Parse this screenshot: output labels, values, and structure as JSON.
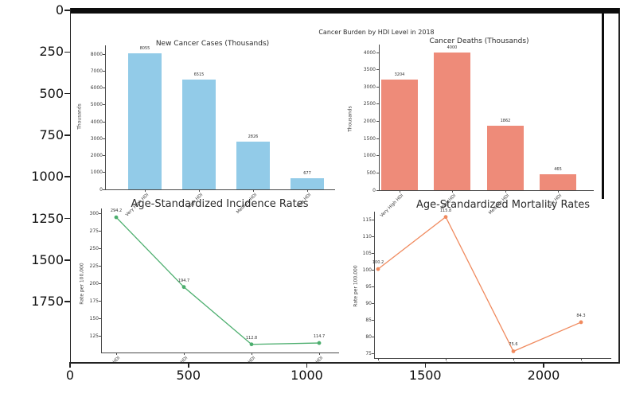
{
  "figure": {
    "suptitle": "Cancer Burden by HDI Level in 2018",
    "categories": [
      "Very High HDI",
      "High HDI",
      "Medium HDI",
      "Low HDI"
    ],
    "colors": {
      "cases_bar": "#92CBE8",
      "deaths_bar": "#EE8B79",
      "incidence_line": "#4CAE6E",
      "mortality_line": "#F08A5E",
      "axis": "#222222",
      "strip": "#0d0d0d"
    }
  },
  "outer_axes": {
    "yticks": [
      "0",
      "250",
      "500",
      "750",
      "1000",
      "1250",
      "1500",
      "1750"
    ],
    "xticks": [
      "0",
      "500",
      "1000",
      "1500",
      "2000"
    ]
  },
  "chart_data": [
    {
      "type": "bar",
      "title": "New Cancer Cases (Thousands)",
      "ylabel": "Thousands",
      "categories": [
        "Very High HDI",
        "High HDI",
        "Medium HDI",
        "Low HDI"
      ],
      "values": [
        8055,
        6515,
        2826,
        677
      ],
      "labels": [
        "8055",
        "6515",
        "2826",
        "677"
      ],
      "yticks": [
        0,
        1000,
        2000,
        3000,
        4000,
        5000,
        6000,
        7000,
        8000
      ],
      "ylim": [
        0,
        8500
      ],
      "color": "#92CBE8",
      "grid": false,
      "legend": "none"
    },
    {
      "type": "bar",
      "title": "Cancer Deaths (Thousands)",
      "ylabel": "Thousands",
      "categories": [
        "Very High HDI",
        "High HDI",
        "Medium HDI",
        "Low HDI"
      ],
      "values": [
        3204,
        4000,
        1862,
        465
      ],
      "labels": [
        "3204",
        "4000",
        "1862",
        "465"
      ],
      "yticks": [
        0,
        500,
        1000,
        1500,
        2000,
        2500,
        3000,
        3500,
        4000
      ],
      "ylim": [
        0,
        4200
      ],
      "color": "#EE8B79",
      "grid": false,
      "legend": "none"
    },
    {
      "type": "line",
      "title": "Age-Standardized Incidence Rates",
      "ylabel": "Rate per 100,000",
      "categories": [
        "Very High HDI",
        "High HDI",
        "Medium HDI",
        "Low HDI"
      ],
      "values": [
        294.2,
        194.7,
        112.8,
        114.7
      ],
      "labels": [
        "294.2",
        "194.7",
        "112.8",
        "114.7"
      ],
      "yticks": [
        125,
        150,
        175,
        200,
        225,
        250,
        275,
        300
      ],
      "ylim": [
        105,
        303
      ],
      "color": "#4CAE6E",
      "grid": false,
      "legend": "none"
    },
    {
      "type": "line",
      "title": "Age-Standardized Mortality Rates",
      "ylabel": "Rate per 100,000",
      "categories": [
        "Very High HDI",
        "High HDI",
        "Medium HDI",
        "Low HDI"
      ],
      "values": [
        100.2,
        115.8,
        75.6,
        84.3
      ],
      "labels": [
        "100.2",
        "115.8",
        "75.6",
        "84.3"
      ],
      "yticks": [
        75,
        80,
        85,
        90,
        95,
        100,
        105,
        110,
        115
      ],
      "ylim": [
        73,
        118
      ],
      "color": "#F08A5E",
      "grid": false,
      "legend": "none"
    }
  ]
}
